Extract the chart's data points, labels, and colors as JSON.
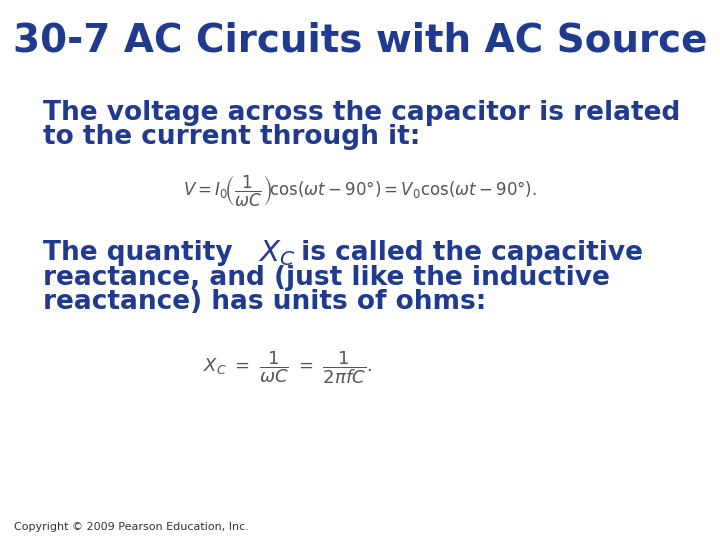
{
  "title": "30-7 AC Circuits with AC Source",
  "title_color": "#1F3A8F",
  "title_fontsize": 28,
  "body_color": "#1F3A8F",
  "body_fontsize": 19,
  "background_color": "#FFFFFF",
  "para1_line1": "The voltage across the capacitor is related",
  "para1_line2": "to the current through it:",
  "para2_line1_pre": "The quantity ",
  "para2_line1_post": " is called the capacitive",
  "para2_line2": "reactance, and (just like the inductive",
  "para2_line3": "reactance) has units of ohms:",
  "copyright": "Copyright © 2009 Pearson Education, Inc.",
  "copyright_fontsize": 8,
  "formula1_color": "#555555",
  "formula2_color": "#555555",
  "formula1_fontsize": 12,
  "formula2_fontsize": 13
}
